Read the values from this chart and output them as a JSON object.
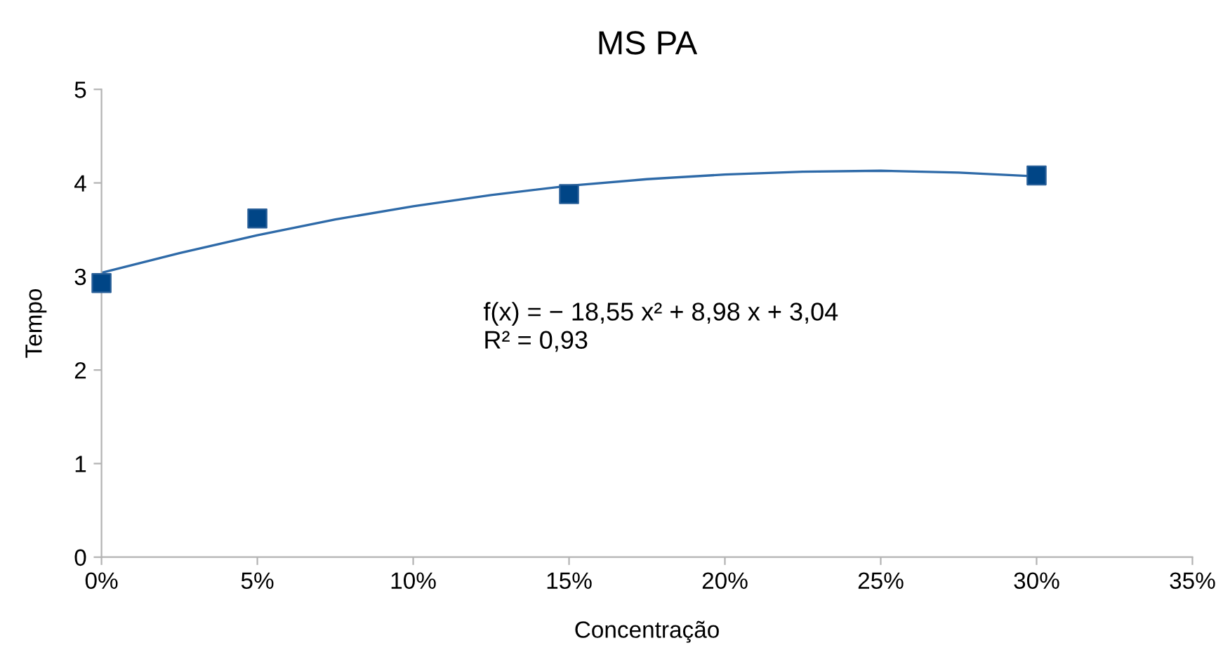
{
  "chart_data": {
    "type": "scatter",
    "title": "MS PA",
    "xlabel": "Concentração",
    "ylabel": "Tempo",
    "series": [
      {
        "color": "#004586",
        "marker": "square",
        "x": [
          0,
          0.05,
          0.15,
          0.3
        ],
        "values": [
          2.93,
          3.62,
          3.88,
          4.08
        ]
      },
      {
        "type": "line",
        "color": "#2e6aa8",
        "marker": "none",
        "x": [
          0,
          0.025,
          0.05,
          0.075,
          0.1,
          0.125,
          0.15,
          0.175,
          0.2,
          0.225,
          0.25,
          0.275,
          0.3
        ],
        "values": [
          3.04,
          3.25,
          3.44,
          3.61,
          3.75,
          3.87,
          3.97,
          4.04,
          4.09,
          4.12,
          4.13,
          4.11,
          4.07
        ]
      }
    ],
    "annotations": [
      "f(x) = − 18,55 x² + 8,98 x + 3,04\nR² = 0,93"
    ],
    "xlim": [
      0,
      0.35
    ],
    "xticks": [
      {
        "value": 0,
        "label": "0%"
      },
      {
        "value": 0.05,
        "label": "5%"
      },
      {
        "value": 0.1,
        "label": "10%"
      },
      {
        "value": 0.15,
        "label": "15%"
      },
      {
        "value": 0.2,
        "label": "20%"
      },
      {
        "value": 0.25,
        "label": "25%"
      },
      {
        "value": 0.3,
        "label": "30%"
      },
      {
        "value": 0.35,
        "label": "35%"
      }
    ],
    "ylim": [
      0,
      5
    ],
    "yticks": [
      0,
      1,
      2,
      3,
      4,
      5
    ],
    "grid": false,
    "legend": false
  }
}
